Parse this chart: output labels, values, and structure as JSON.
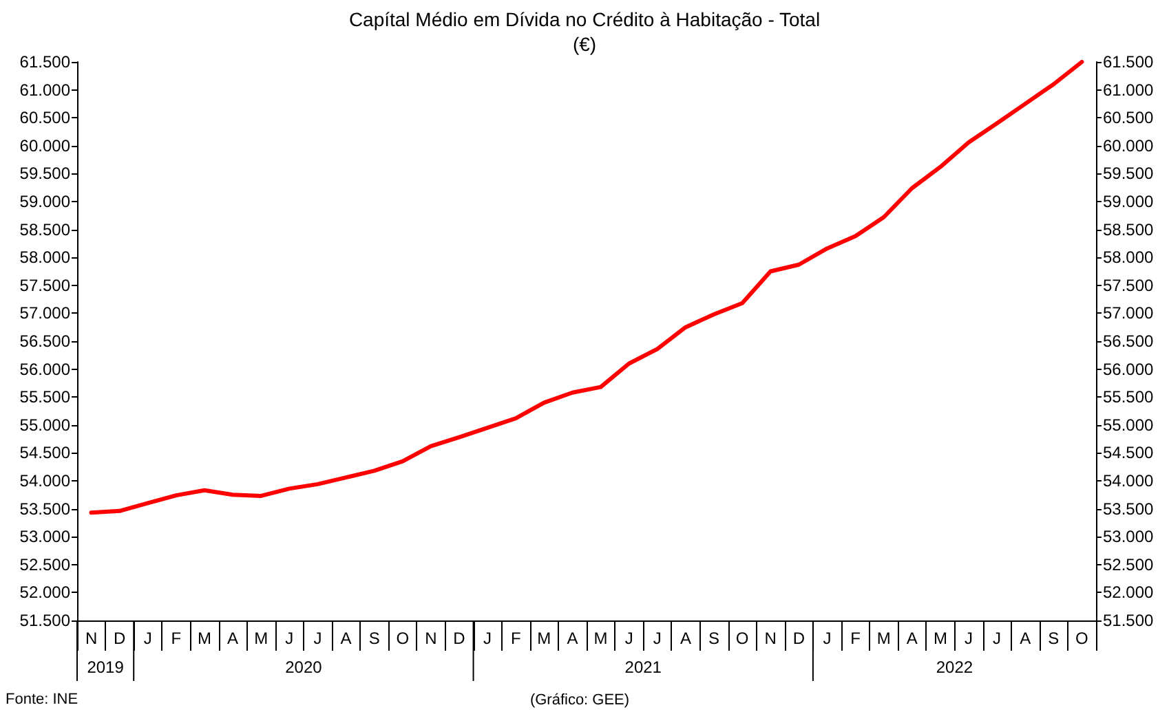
{
  "chart_data": {
    "type": "line",
    "title": "Capítal Médio em Dívida no Crédito à Habitação - Total",
    "subtitle": "(€)",
    "categories": [
      "N",
      "D",
      "J",
      "F",
      "M",
      "A",
      "M",
      "J",
      "J",
      "A",
      "S",
      "O",
      "N",
      "D",
      "J",
      "F",
      "M",
      "A",
      "M",
      "J",
      "J",
      "A",
      "S",
      "O",
      "N",
      "D",
      "J",
      "F",
      "M",
      "A",
      "M",
      "J",
      "J",
      "A",
      "S",
      "O"
    ],
    "series": [
      {
        "color": "#ff0000",
        "values": [
          53430,
          53460,
          53600,
          53740,
          53830,
          53750,
          53730,
          53860,
          53940,
          54060,
          54180,
          54350,
          54620,
          54780,
          54950,
          55120,
          55400,
          55580,
          55680,
          56100,
          56360,
          56750,
          56980,
          57180,
          57750,
          57870,
          58160,
          58380,
          58720,
          59240,
          59620,
          60060,
          60400,
          60750,
          61100,
          61500
        ]
      }
    ],
    "ylim": [
      51500,
      61500
    ],
    "yticks": [
      {
        "value": 51500,
        "label": "51.500"
      },
      {
        "value": 52000,
        "label": "52.000"
      },
      {
        "value": 52500,
        "label": "52.500"
      },
      {
        "value": 53000,
        "label": "53.000"
      },
      {
        "value": 53500,
        "label": "53.500"
      },
      {
        "value": 54000,
        "label": "54.000"
      },
      {
        "value": 54500,
        "label": "54.500"
      },
      {
        "value": 55000,
        "label": "55.000"
      },
      {
        "value": 55500,
        "label": "55.500"
      },
      {
        "value": 56000,
        "label": "56.000"
      },
      {
        "value": 56500,
        "label": "56.500"
      },
      {
        "value": 57000,
        "label": "57.000"
      },
      {
        "value": 57500,
        "label": "57.500"
      },
      {
        "value": 58000,
        "label": "58.000"
      },
      {
        "value": 58500,
        "label": "58.500"
      },
      {
        "value": 59000,
        "label": "59.000"
      },
      {
        "value": 59500,
        "label": "59.500"
      },
      {
        "value": 60000,
        "label": "60.000"
      },
      {
        "value": 60500,
        "label": "60.500"
      },
      {
        "value": 61000,
        "label": "61.000"
      },
      {
        "value": 61500,
        "label": "61.500"
      }
    ],
    "y2lim": [
      51500,
      61500
    ],
    "y2ticks": [
      {
        "value": 51500,
        "label": "51.500"
      },
      {
        "value": 52000,
        "label": "52.000"
      },
      {
        "value": 52500,
        "label": "52.500"
      },
      {
        "value": 53000,
        "label": "53.000"
      },
      {
        "value": 53500,
        "label": "53.500"
      },
      {
        "value": 54000,
        "label": "54.000"
      },
      {
        "value": 54500,
        "label": "54.500"
      },
      {
        "value": 55000,
        "label": "55.000"
      },
      {
        "value": 55500,
        "label": "55.500"
      },
      {
        "value": 56000,
        "label": "56.000"
      },
      {
        "value": 56500,
        "label": "56.500"
      },
      {
        "value": 57000,
        "label": "57.000"
      },
      {
        "value": 57500,
        "label": "57.500"
      },
      {
        "value": 58000,
        "label": "58.000"
      },
      {
        "value": 58500,
        "label": "58.500"
      },
      {
        "value": 59000,
        "label": "59.000"
      },
      {
        "value": 59500,
        "label": "59.500"
      },
      {
        "value": 60000,
        "label": "60.000"
      },
      {
        "value": 60500,
        "label": "60.500"
      },
      {
        "value": 61000,
        "label": "61.000"
      },
      {
        "value": 61500,
        "label": "61.500"
      }
    ],
    "annotations": [
      "Fonte: INE",
      "(Gráfico: GEE)",
      "2019",
      "2020",
      "2021",
      "2022"
    ],
    "grid": false,
    "marker": "none",
    "line_style": "solid"
  }
}
